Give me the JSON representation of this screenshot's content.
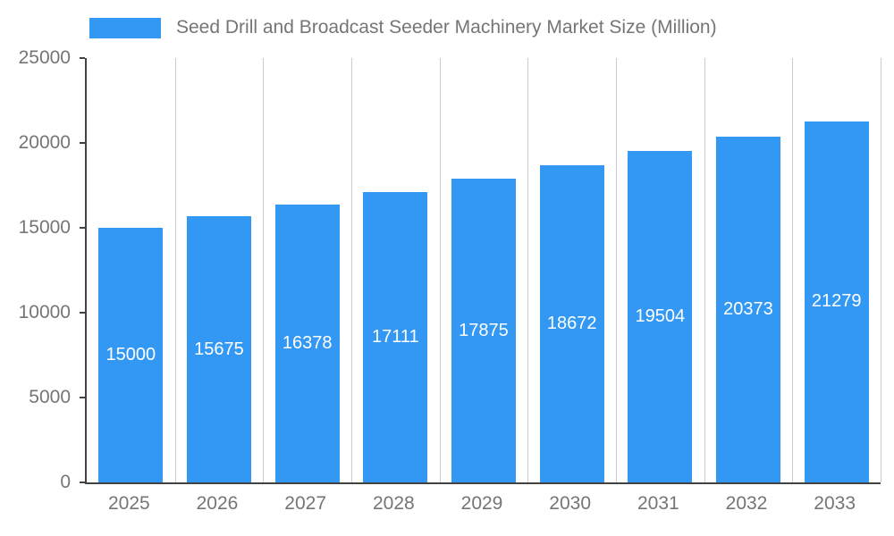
{
  "legend": {
    "title": "Seed Drill and Broadcast Seeder Machinery Market Size (Million)"
  },
  "colors": {
    "bar": "#3398F3",
    "axis_text": "#757575",
    "grid_line": "#CCCCCC",
    "axis_line": "#424242",
    "value_label_text": "#FFFFFF",
    "background": "#FFFFFF"
  },
  "chart_data": {
    "type": "bar",
    "title": "Seed Drill and Broadcast Seeder Machinery Market Size (Million)",
    "categories": [
      "2025",
      "2026",
      "2027",
      "2028",
      "2029",
      "2030",
      "2031",
      "2032",
      "2033"
    ],
    "values": [
      15000,
      15675,
      16378,
      17111,
      17875,
      18672,
      19504,
      20373,
      21279
    ],
    "xlabel": "",
    "ylabel": "",
    "ylim": [
      0,
      25000
    ],
    "yticks": [
      0,
      5000,
      10000,
      15000,
      20000,
      25000
    ],
    "grid": "vertical-only",
    "legend_position": "top-left",
    "value_labels": "inside-center-white"
  }
}
